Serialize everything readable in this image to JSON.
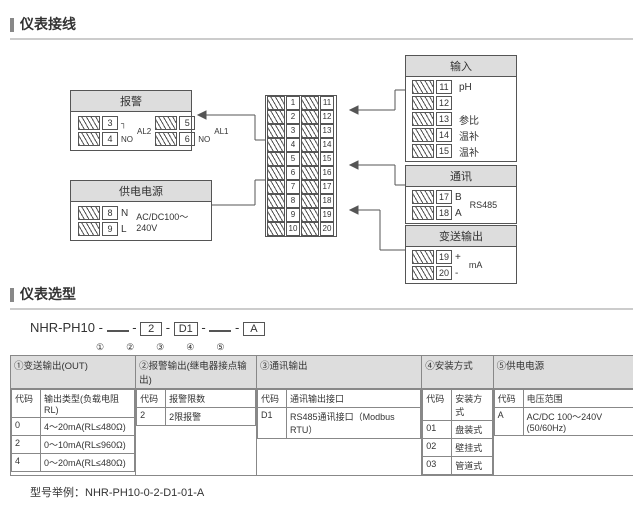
{
  "section1_title": "仪表接线",
  "section2_title": "仪表选型",
  "alarm": {
    "header": "报警",
    "t3": "3",
    "t4": "4",
    "t5": "5",
    "t6": "6",
    "no_label_a": "NO",
    "al2": "AL2",
    "no_label_b": "NO",
    "al1": "AL1"
  },
  "power": {
    "header": "供电电源",
    "t8": "8",
    "t9": "9",
    "n": "N",
    "l": "L",
    "spec": "AC/DC100～240V"
  },
  "center": {
    "left": [
      "1",
      "2",
      "3",
      "4",
      "5",
      "6",
      "7",
      "8",
      "9",
      "10"
    ],
    "right": [
      "11",
      "12",
      "13",
      "14",
      "15",
      "16",
      "17",
      "18",
      "19",
      "20"
    ]
  },
  "input": {
    "header": "输入",
    "rows": [
      {
        "n": "11",
        "lbl": "pH"
      },
      {
        "n": "12",
        "lbl": ""
      },
      {
        "n": "13",
        "lbl": "参比"
      },
      {
        "n": "14",
        "lbl": "温补"
      },
      {
        "n": "15",
        "lbl": "温补"
      }
    ]
  },
  "comm": {
    "header": "通讯",
    "rows": [
      {
        "n": "17",
        "lbl": "B"
      },
      {
        "n": "18",
        "lbl": "A"
      }
    ],
    "spec": "RS485"
  },
  "output": {
    "header": "变送输出",
    "rows": [
      {
        "n": "19",
        "lbl": "+"
      },
      {
        "n": "20",
        "lbl": "-"
      }
    ],
    "spec": "mA"
  },
  "model": {
    "prefix": "NHR-PH10",
    "dash": "-",
    "boxes": [
      " ",
      "2",
      "D1",
      " ",
      "A"
    ],
    "subs": [
      "①",
      "②",
      "③",
      "④",
      "⑤"
    ]
  },
  "sel": {
    "heads": [
      "①变送输出(OUT)",
      "②报警输出(继电器接点输出)",
      "③通讯输出",
      "④安装方式",
      "⑤供电电源"
    ],
    "sub_code": "代码",
    "cols": {
      "c1h": "输出类型(负载电阻RL)",
      "c1": [
        {
          "k": "0",
          "v": "4～20mA(RL≤480Ω)"
        },
        {
          "k": "2",
          "v": "0～10mA(RL≤960Ω)"
        },
        {
          "k": "4",
          "v": "0～20mA(RL≤480Ω)"
        }
      ],
      "c2h": "报警限数",
      "c2": [
        {
          "k": "2",
          "v": "2限报警"
        }
      ],
      "c3h": "通讯输出接口",
      "c3": [
        {
          "k": "D1",
          "v": "RS485通讯接口（Modbus RTU）"
        }
      ],
      "c4h": "安装方式",
      "c4": [
        {
          "k": "01",
          "v": "盘装式"
        },
        {
          "k": "02",
          "v": "壁挂式"
        },
        {
          "k": "03",
          "v": "管道式"
        }
      ],
      "c5h": "电压范围",
      "c5": [
        {
          "k": "A",
          "v": "AC/DC 100～240V (50/60Hz)"
        }
      ]
    }
  },
  "example_label": "型号举例：",
  "example_value": "NHR-PH10-0-2-D1-01-A"
}
